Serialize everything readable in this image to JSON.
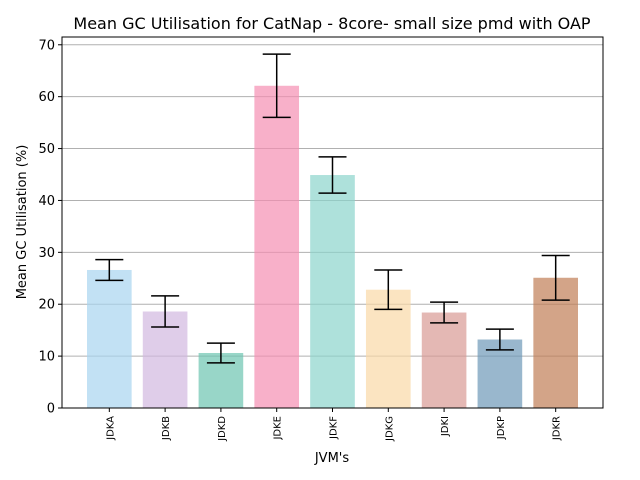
{
  "chart_data": {
    "type": "bar",
    "title": "Mean GC Utilisation for CatNap - 8core- small size pmd with OAP",
    "xlabel": "JVM's",
    "ylabel": "Mean GC Utilisation (%)",
    "ylim": [
      0,
      71.5
    ],
    "yticks": [
      0,
      10,
      20,
      30,
      40,
      50,
      60,
      70
    ],
    "grid": "horizontal",
    "categories": [
      "JDKA",
      "JDKB",
      "JDKD",
      "JDKE",
      "JDKF",
      "JDKG",
      "JDKI",
      "JDKP",
      "JDKR"
    ],
    "values": [
      26.6,
      18.6,
      10.6,
      62.1,
      44.9,
      22.8,
      18.4,
      13.2,
      25.1
    ],
    "errors": [
      2.0,
      3.0,
      1.9,
      6.1,
      3.5,
      3.8,
      2.0,
      2.0,
      4.3
    ],
    "colors": [
      "#a8d4f0",
      "#d2b8e0",
      "#6cc4b0",
      "#f58fb2",
      "#8cd4cc",
      "#fad8a6",
      "#d99a94",
      "#6e98b8",
      "#c07e56"
    ],
    "bar_alpha": 0.7
  }
}
